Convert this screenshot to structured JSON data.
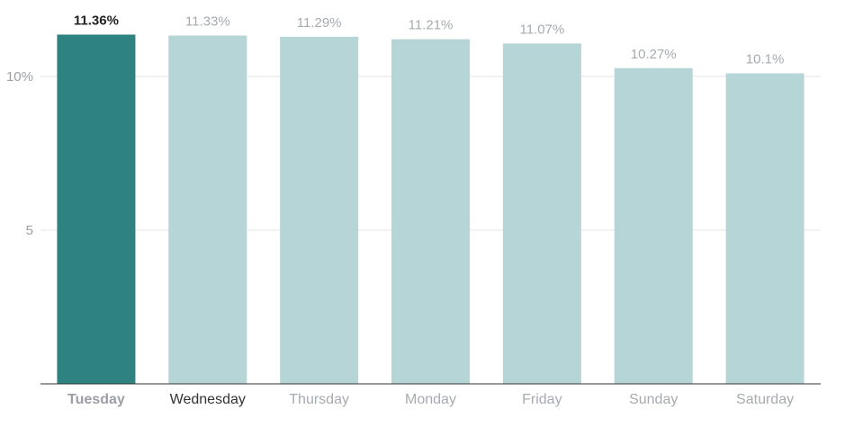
{
  "chart_data": {
    "type": "bar",
    "categories": [
      "Tuesday",
      "Wednesday",
      "Thursday",
      "Monday",
      "Friday",
      "Sunday",
      "Saturday"
    ],
    "values": [
      11.36,
      11.33,
      11.29,
      11.21,
      11.07,
      10.27,
      10.1
    ],
    "value_labels": [
      "11.36%",
      "11.33%",
      "11.29%",
      "11.21%",
      "11.07%",
      "10.27%",
      "10.1%"
    ],
    "highlight_index": 0,
    "ylim": [
      0,
      12.5
    ],
    "yticks": [
      {
        "value": 5,
        "label": "5"
      },
      {
        "value": 10,
        "label": "10%"
      }
    ],
    "grid": true,
    "colors": {
      "highlight_bar": "#2e827f",
      "bar": "#b6d5d6",
      "value_label_highlight": "#222222",
      "value_label": "#a5acb0",
      "category_label_highlight": "#9aa0a6",
      "category_label_hover": "#333333",
      "category_label": "#a5acb0",
      "gridline": "#e6e6e6",
      "axis": "#333333"
    },
    "category_label_dark_index": 1
  }
}
